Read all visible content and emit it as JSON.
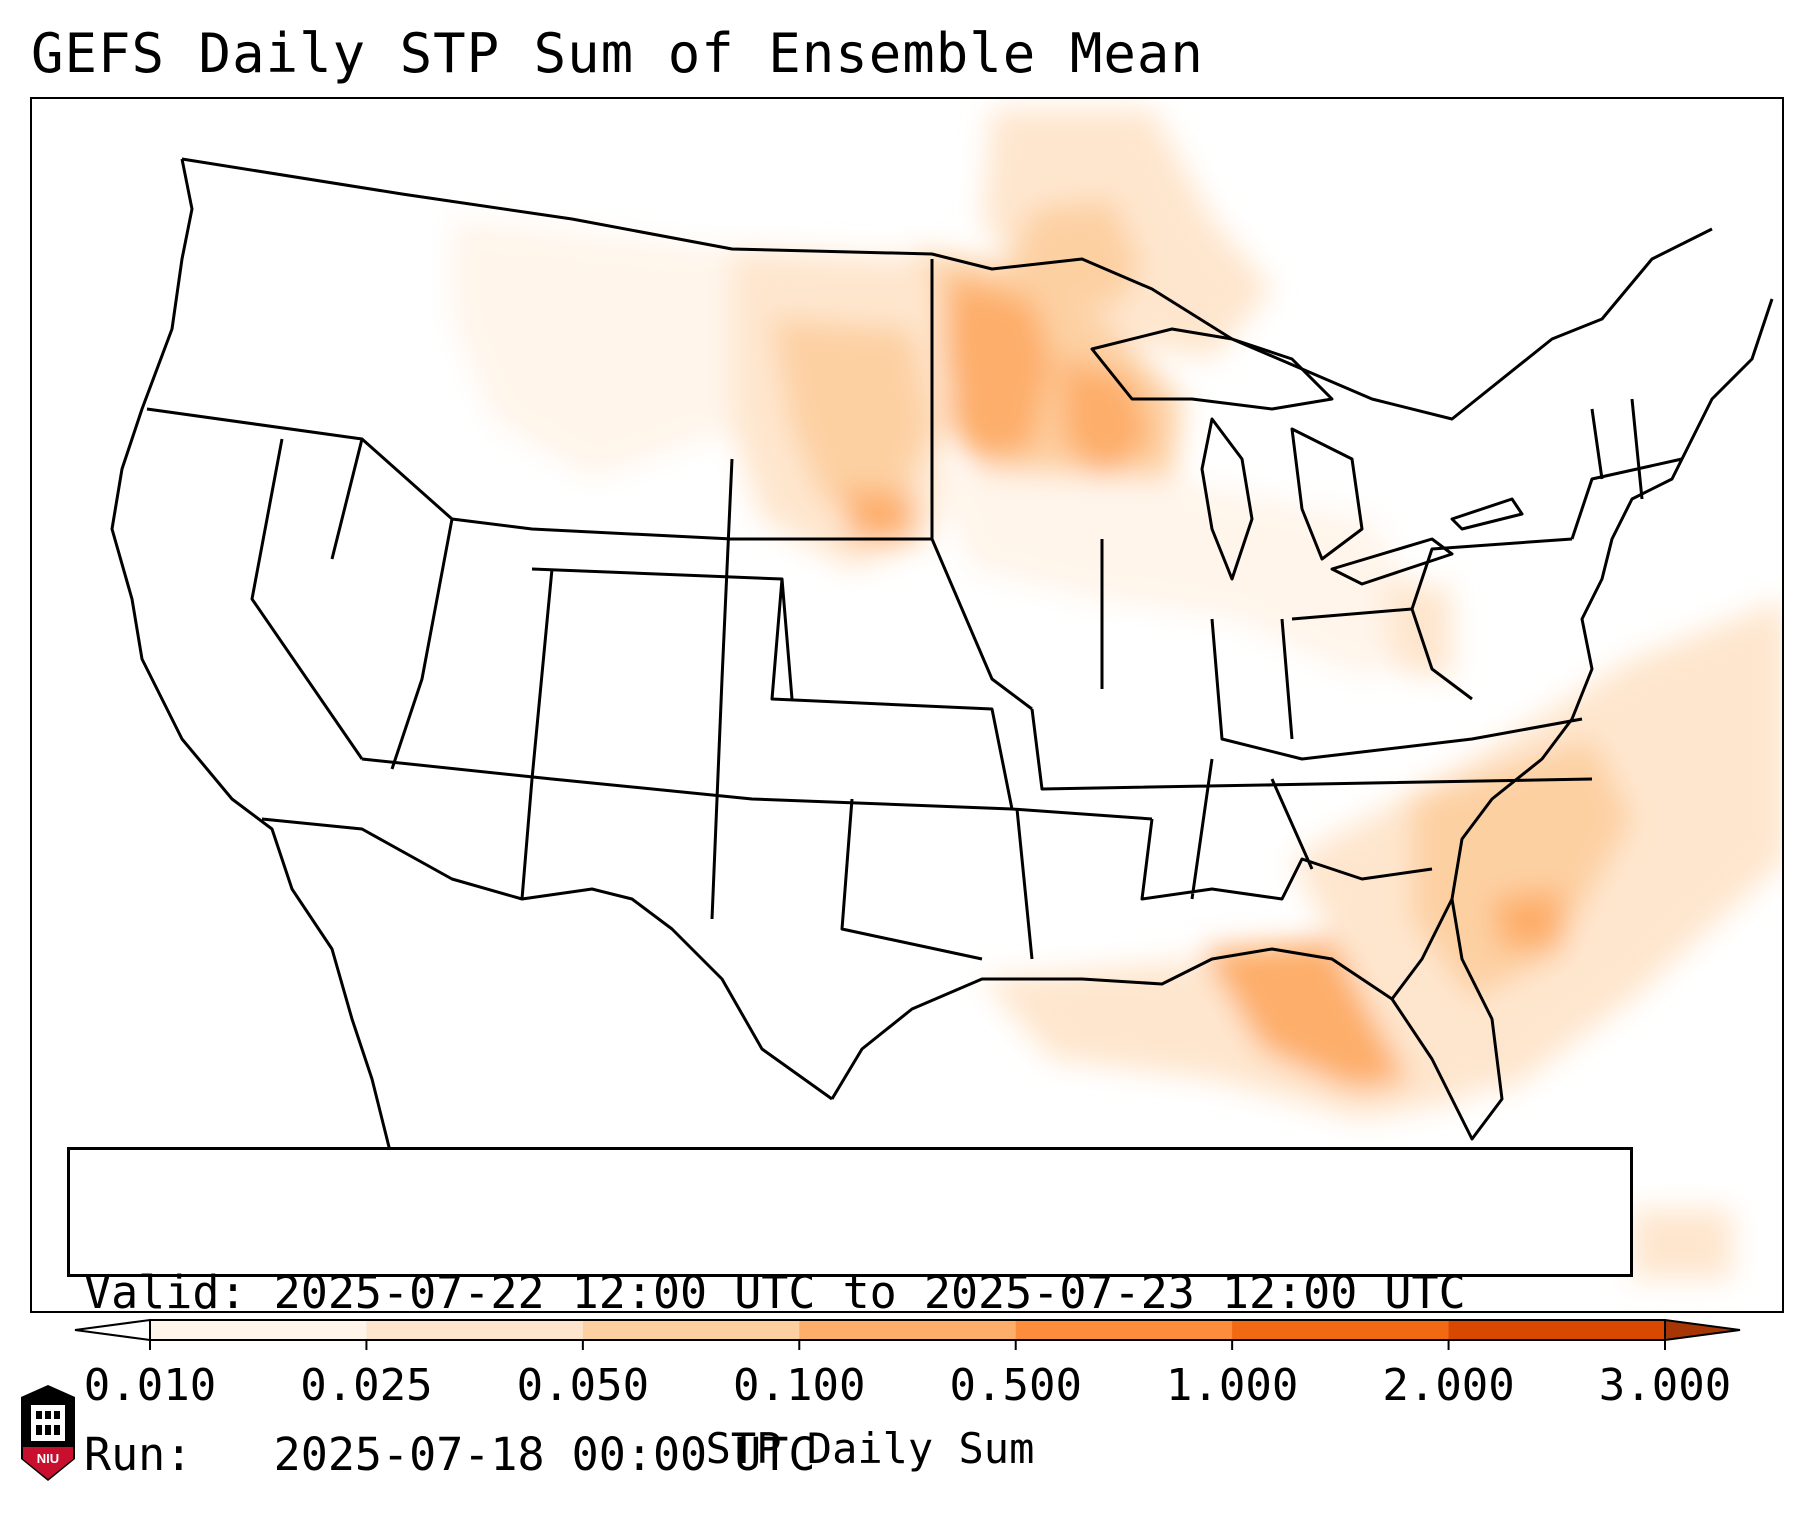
{
  "header": {
    "title": "GEFS Daily STP Sum of Ensemble Mean"
  },
  "info": {
    "valid_line": "Valid: 2025-07-22 12:00 UTC to 2025-07-23 12:00 UTC",
    "run_line": "Run:   2025-07-18 00:00 UTC"
  },
  "colorbar": {
    "label": "STP Daily Sum",
    "ticks": [
      "0.010",
      "0.025",
      "0.050",
      "0.100",
      "0.500",
      "1.000",
      "2.000",
      "3.000"
    ],
    "colors": [
      "#fff5eb",
      "#fee6ce",
      "#fdd0a2",
      "#fdae6b",
      "#fd8d3c",
      "#f16913",
      "#d94801",
      "#a63603"
    ],
    "extend": "both"
  },
  "map": {
    "region": "Contiguous United States",
    "land_color": "#ffffff",
    "border_color": "#000000",
    "shading_areas": [
      {
        "region": "Minnesota / Wisconsin",
        "level": "0.100"
      },
      {
        "region": "Northern Plains (Dakotas, Nebraska)",
        "level": "0.050"
      },
      {
        "region": "Ontario / Manitoba",
        "level": "0.050"
      },
      {
        "region": "Florida Panhandle / Gulf Coast",
        "level": "0.100"
      },
      {
        "region": "Southeast Atlantic coast (offshore Georgia / Carolinas)",
        "level": "0.100"
      },
      {
        "region": "Ohio Valley / Great Lakes",
        "level": "0.025"
      }
    ]
  },
  "logo": {
    "text": "NIU"
  }
}
